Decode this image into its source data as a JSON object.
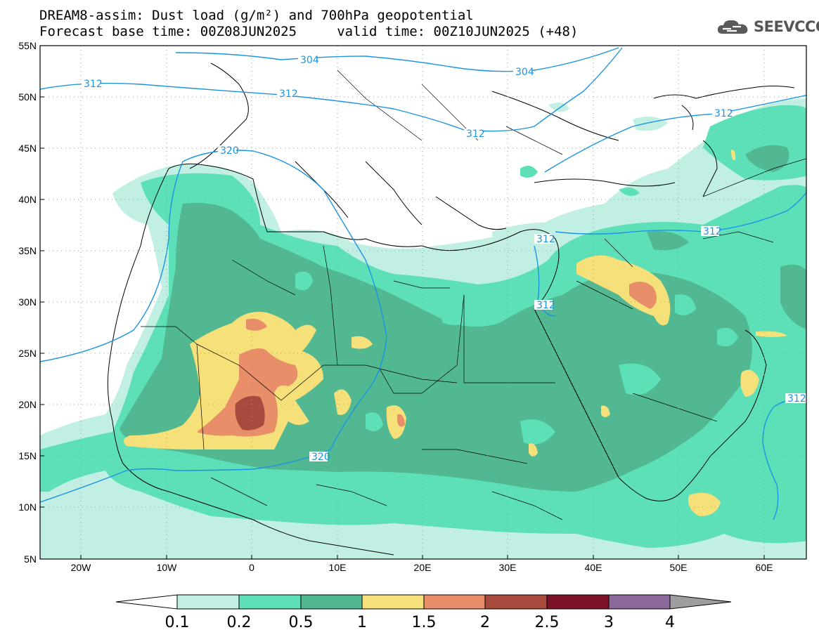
{
  "header": {
    "title_line1": "DREAM8-assim: Dust load (g/m²) and 700hPa geopotential",
    "title_line2": "Forecast base time: 00Z08JUN2025     valid time: 00Z10JUN2025 (+48)",
    "logo_text": "SEEVCCC"
  },
  "map": {
    "lon_labels": [
      "20W",
      "10W",
      "0",
      "10E",
      "20E",
      "30E",
      "40E",
      "50E",
      "60E"
    ],
    "lat_labels": [
      "55N",
      "50N",
      "45N",
      "40N",
      "35N",
      "30N",
      "25N",
      "20N",
      "15N",
      "10N",
      "5N"
    ],
    "contour_labels": [
      "304",
      "304",
      "312",
      "312",
      "312",
      "312",
      "312",
      "312",
      "312",
      "320",
      "320"
    ]
  },
  "colorbar": {
    "ticks": [
      "0.1",
      "0.2",
      "0.5",
      "1",
      "1.5",
      "2",
      "2.5",
      "3",
      "4"
    ],
    "colors": [
      "#c1efe4",
      "#5de0b8",
      "#52b891",
      "#f5e07a",
      "#e88e68",
      "#a94a3e",
      "#7d1226",
      "#8b6a9b"
    ],
    "low_color": "#ffffff",
    "high_color": "#9e9e9e"
  },
  "colors": {
    "geopotential_line": "#1c94e0",
    "coastline": "#000000"
  }
}
